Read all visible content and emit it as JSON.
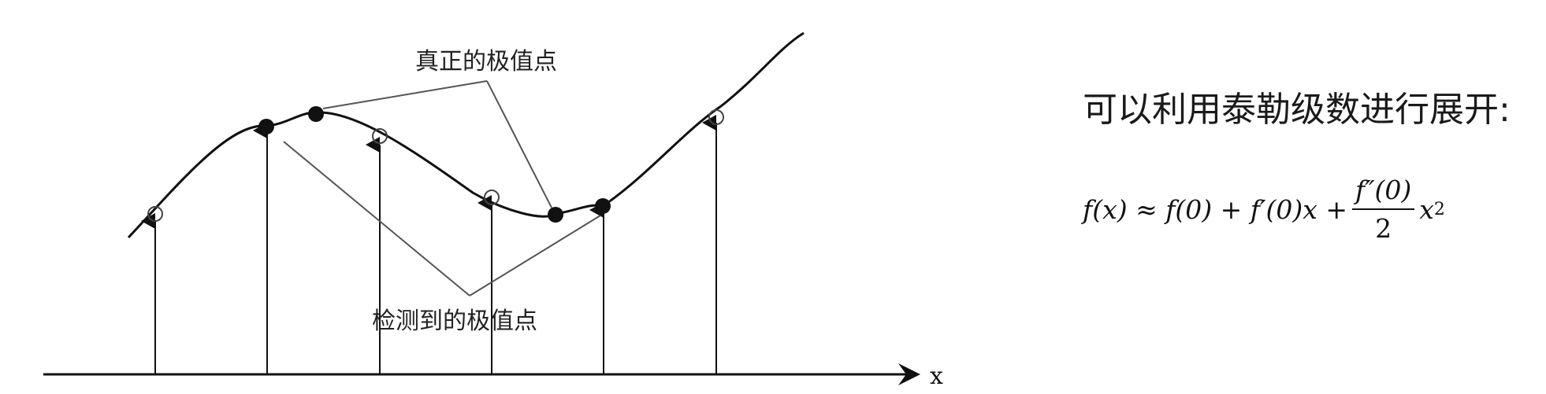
{
  "labels": {
    "true_extremum": "真正的极值点",
    "detected_extremum": "检测到的极值点",
    "x_axis": "x"
  },
  "right_panel": {
    "title": "可以利用泰勒级数进行展开:",
    "formula": {
      "lhs": "f(x) ≈ f(0) + f′(0)x +",
      "frac_num": "f″(0)",
      "frac_den": "2",
      "tail": "x",
      "exp": "2"
    }
  },
  "colors": {
    "stroke": "#111111",
    "label_line": "#555555"
  }
}
